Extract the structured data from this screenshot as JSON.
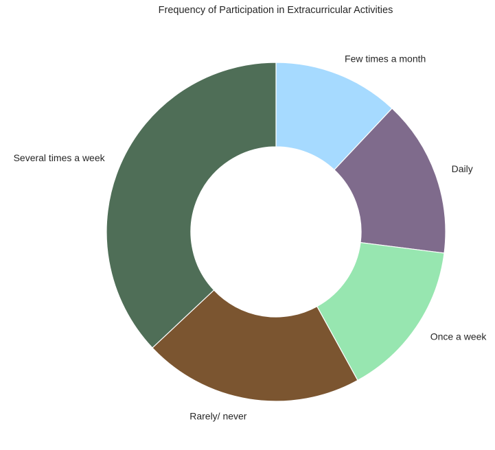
{
  "chart_data": {
    "type": "pie",
    "title": "Frequency of Participation in Extracurricular Activities",
    "donut": true,
    "start_angle_deg": 90,
    "direction": "clockwise",
    "slices": [
      {
        "label": "Few times a month",
        "value": 12.0,
        "color": "#a6daff"
      },
      {
        "label": "Daily",
        "value": 15.0,
        "color": "#7f6b8c"
      },
      {
        "label": "Once a week",
        "value": 15.0,
        "color": "#97e6b0"
      },
      {
        "label": "Rarely/ never",
        "value": 21.0,
        "color": "#7b5530"
      },
      {
        "label": "Several times a week",
        "value": 37.0,
        "color": "#4f6e57"
      }
    ]
  }
}
